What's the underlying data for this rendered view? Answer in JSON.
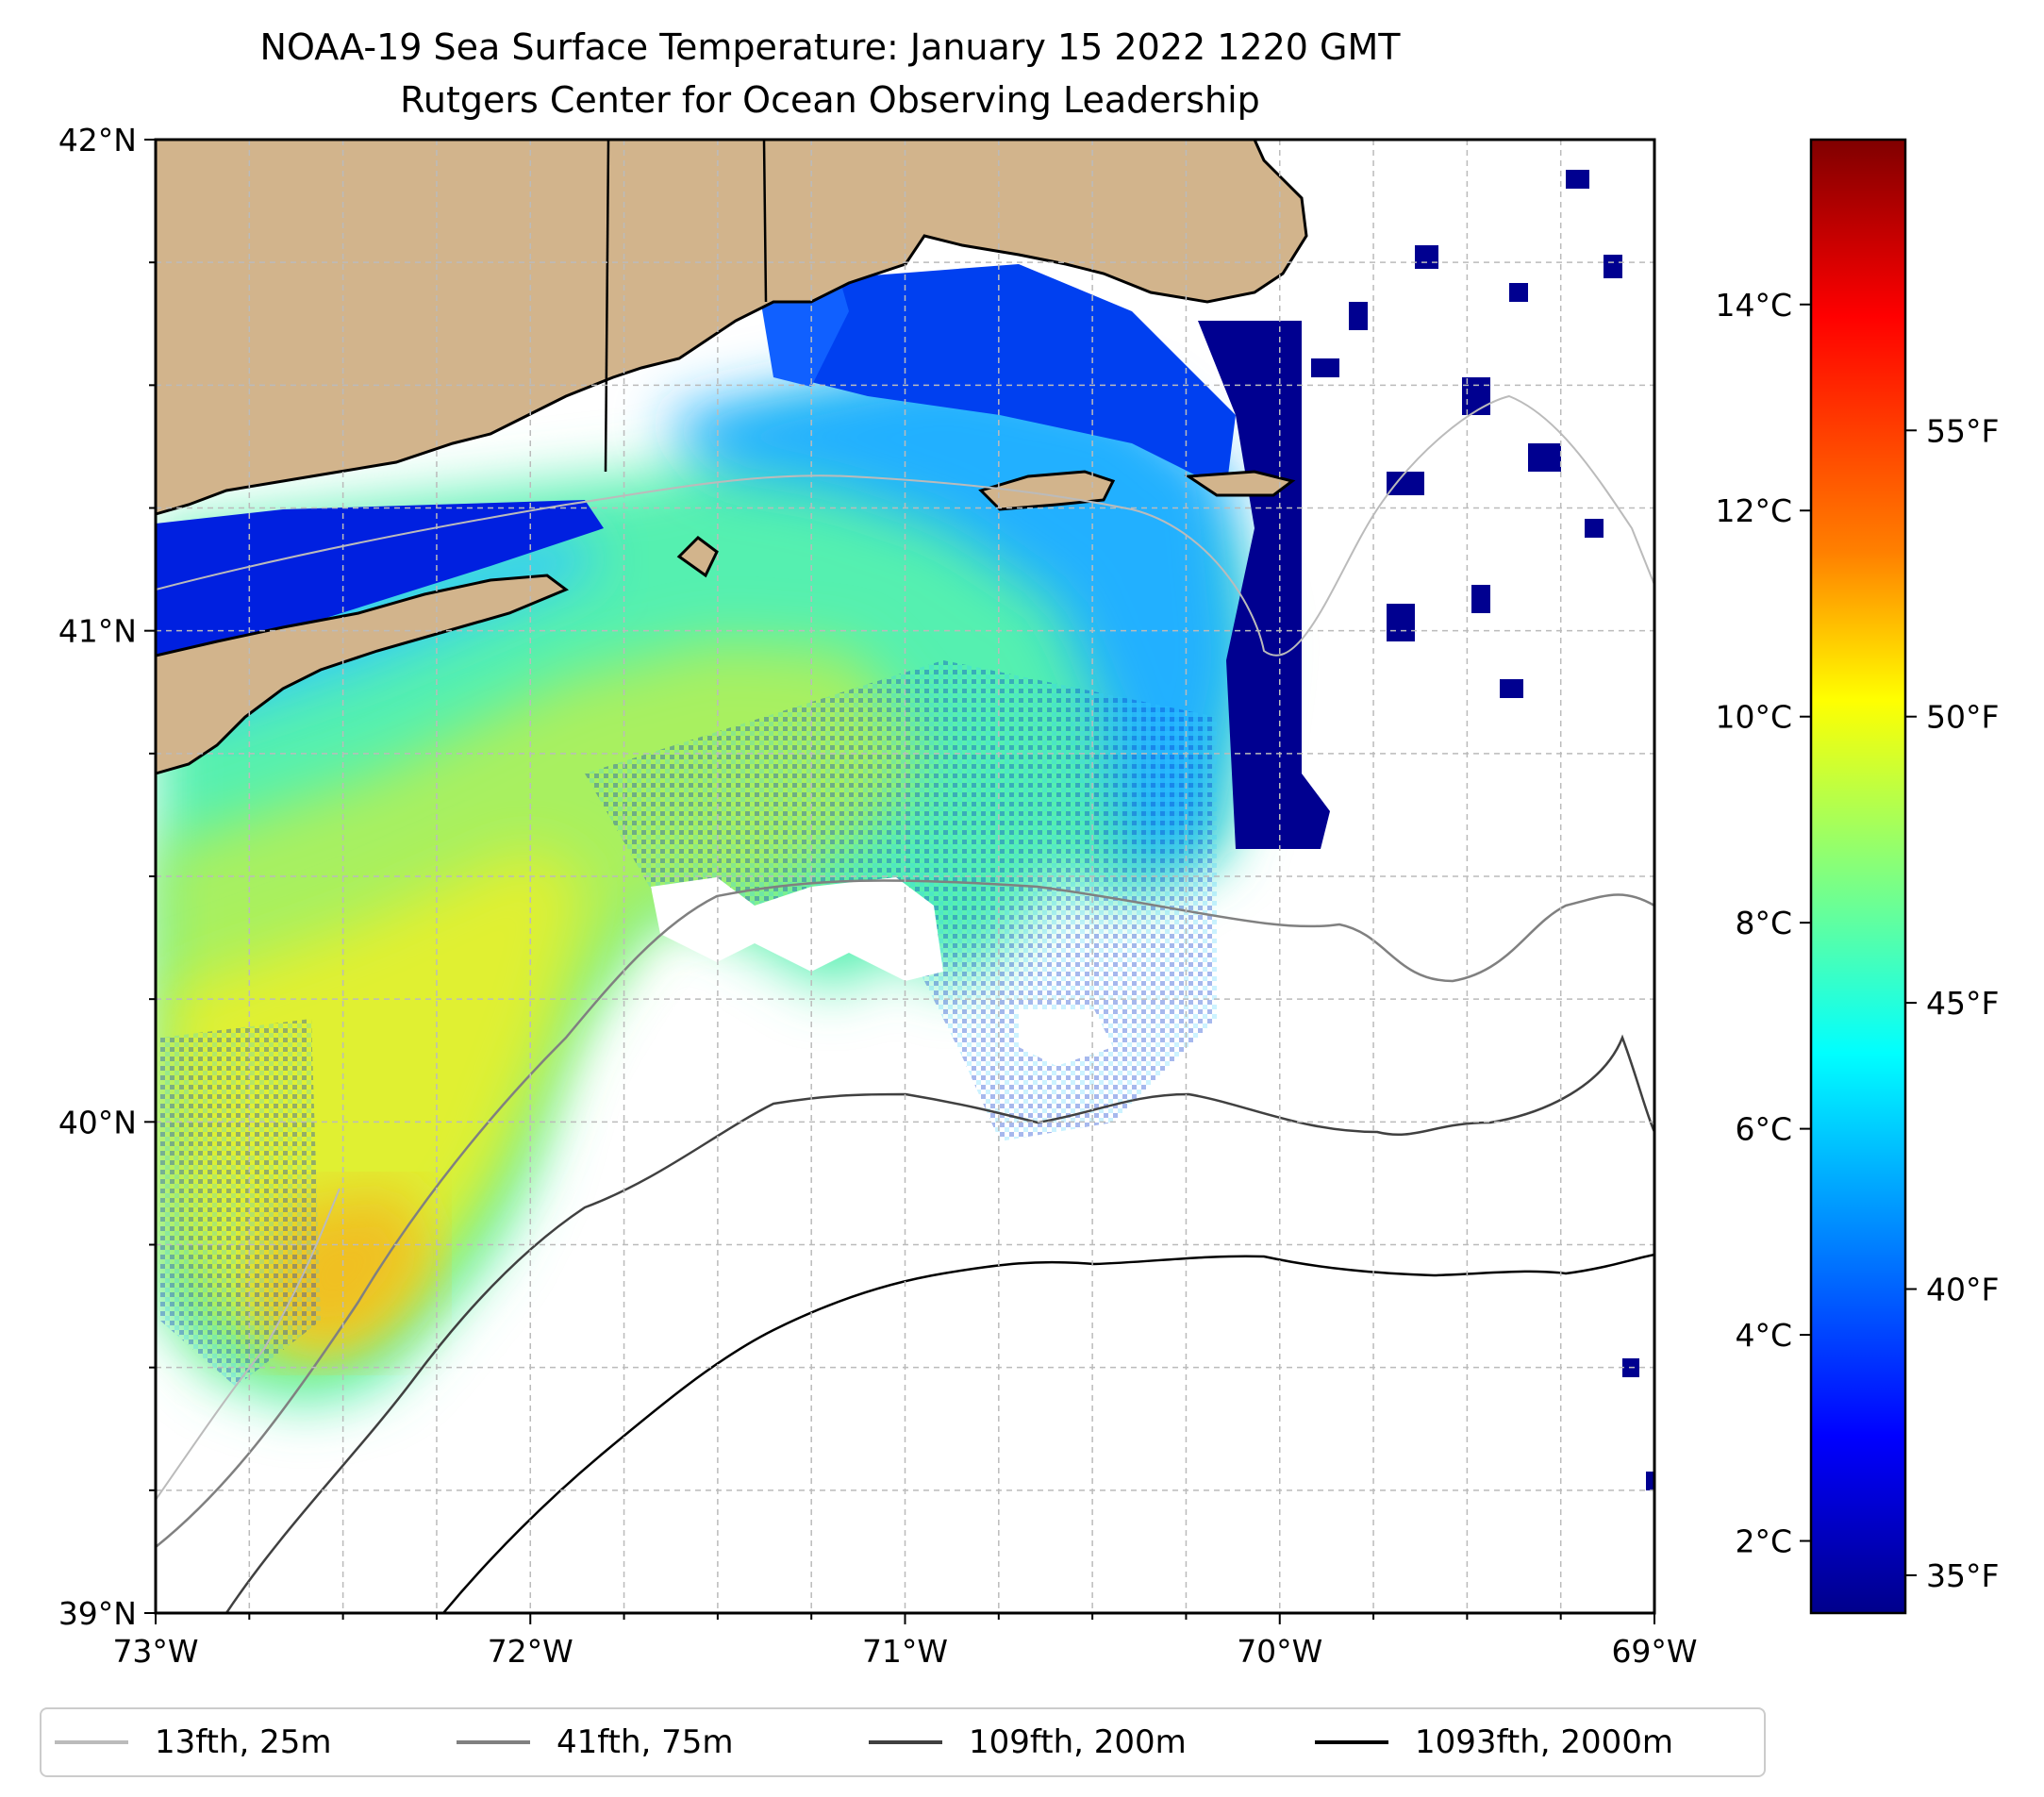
{
  "title": {
    "line1": "NOAA-19 Sea Surface Temperature: January 15 2022 1220 GMT",
    "line2": "Rutgers Center for Ocean Observing Leadership"
  },
  "map": {
    "lat_labels": [
      "42°N",
      "41°N",
      "40°N",
      "39°N"
    ],
    "lon_labels": [
      "73°W",
      "72°W",
      "71°W",
      "70°W",
      "69°W"
    ],
    "lat_range": [
      39,
      42
    ],
    "lon_range": [
      -73,
      -69
    ],
    "land_color": "#D2B48C",
    "gridlines": "dashed",
    "grid_color": "#bbbbbb"
  },
  "colorbar": {
    "colormap": "jet",
    "celsius_labels": [
      "14°C",
      "12°C",
      "10°C",
      "8°C",
      "6°C",
      "4°C",
      "2°C"
    ],
    "fahrenheit_labels": [
      "55°F",
      "50°F",
      "45°F",
      "40°F",
      "35°F"
    ],
    "range_c": [
      1.3,
      15.6
    ]
  },
  "legend": {
    "items": [
      {
        "label": "13fth, 25m",
        "color": "#bbbbbb"
      },
      {
        "label": "41fth, 75m",
        "color": "#808080"
      },
      {
        "label": "109fth, 200m",
        "color": "#404040"
      },
      {
        "label": "1093fth, 2000m",
        "color": "#000000"
      }
    ]
  }
}
